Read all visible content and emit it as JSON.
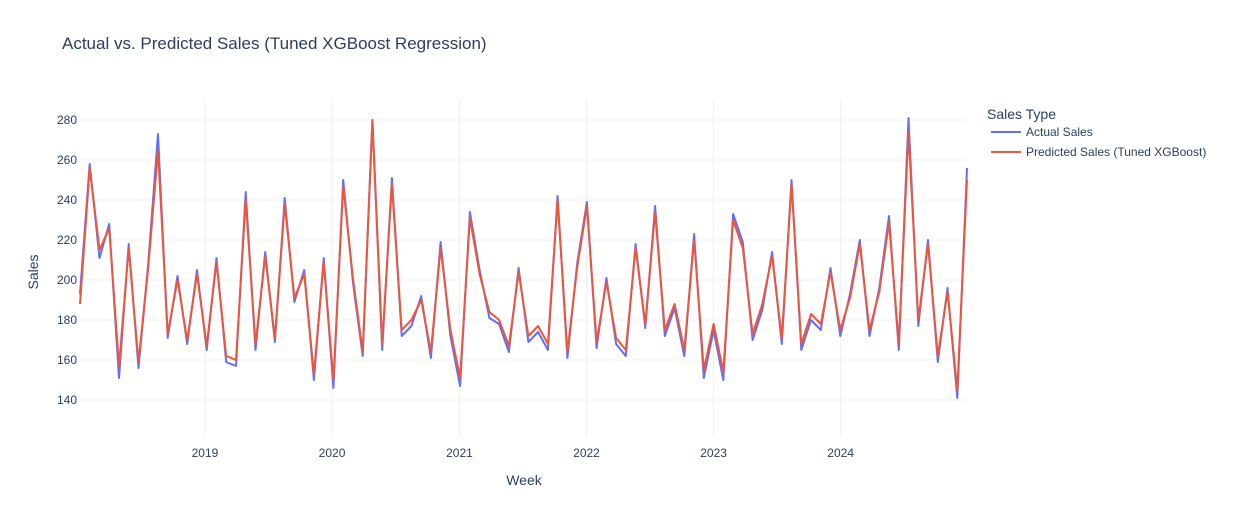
{
  "chart_data": {
    "type": "line",
    "title": "Actual vs. Predicted Sales (Tuned XGBoost Regression)",
    "xlabel": "Week",
    "ylabel": "Sales",
    "ylim": [
      122,
      290
    ],
    "xlim": [
      "2018-01-07",
      "2024-12-29"
    ],
    "y_ticks": [
      140,
      160,
      180,
      200,
      220,
      240,
      260,
      280
    ],
    "x_ticks": [
      "2019",
      "2020",
      "2021",
      "2022",
      "2023",
      "2024"
    ],
    "grid": true,
    "legend_title": "Sales Type",
    "legend_position": "top-right outside",
    "x": [
      "2018-01-07",
      "2018-02-04",
      "2018-03-04",
      "2018-04-01",
      "2018-04-29",
      "2018-05-27",
      "2018-06-24",
      "2018-07-22",
      "2018-08-19",
      "2018-09-16",
      "2018-10-14",
      "2018-11-11",
      "2018-12-09",
      "2019-01-06",
      "2019-02-03",
      "2019-03-03",
      "2019-03-31",
      "2019-04-28",
      "2019-05-26",
      "2019-06-23",
      "2019-07-21",
      "2019-08-18",
      "2019-09-15",
      "2019-10-13",
      "2019-11-10",
      "2019-12-08",
      "2020-01-05",
      "2020-02-02",
      "2020-03-01",
      "2020-03-29",
      "2020-04-26",
      "2020-05-24",
      "2020-06-21",
      "2020-07-19",
      "2020-08-16",
      "2020-09-13",
      "2020-10-11",
      "2020-11-08",
      "2020-12-06",
      "2021-01-03",
      "2021-01-31",
      "2021-02-28",
      "2021-03-28",
      "2021-04-25",
      "2021-05-23",
      "2021-06-20",
      "2021-07-18",
      "2021-08-15",
      "2021-09-12",
      "2021-10-10",
      "2021-11-07",
      "2021-12-05",
      "2022-01-02",
      "2022-01-30",
      "2022-02-27",
      "2022-03-27",
      "2022-04-24",
      "2022-05-22",
      "2022-06-19",
      "2022-07-17",
      "2022-08-14",
      "2022-09-11",
      "2022-10-09",
      "2022-11-06",
      "2022-12-04",
      "2023-01-01",
      "2023-01-29",
      "2023-02-26",
      "2023-03-26",
      "2023-04-23",
      "2023-05-21",
      "2023-06-18",
      "2023-07-16",
      "2023-08-13",
      "2023-09-10",
      "2023-10-08",
      "2023-11-05",
      "2023-12-03",
      "2023-12-31",
      "2024-01-28",
      "2024-02-25",
      "2024-03-24",
      "2024-04-21",
      "2024-05-19",
      "2024-06-16",
      "2024-07-14",
      "2024-08-11",
      "2024-09-08",
      "2024-10-06",
      "2024-11-03",
      "2024-12-01",
      "2024-12-29"
    ],
    "series": [
      {
        "name": "Actual Sales",
        "color": "#636efa",
        "values": [
          193,
          258,
          211,
          228,
          151,
          218,
          156,
          208,
          273,
          171,
          202,
          168,
          205,
          165,
          211,
          159,
          157,
          244,
          165,
          214,
          169,
          241,
          189,
          205,
          150,
          211,
          146,
          250,
          199,
          162,
          280,
          165,
          251,
          172,
          177,
          192,
          161,
          219,
          172,
          147,
          234,
          205,
          181,
          178,
          164,
          206,
          169,
          174,
          165,
          242,
          161,
          208,
          239,
          166,
          201,
          168,
          162,
          218,
          176,
          237,
          172,
          186,
          162,
          223,
          151,
          175,
          150,
          233,
          219,
          170,
          185,
          214,
          168,
          250,
          165,
          180,
          175,
          206,
          172,
          193,
          220,
          172,
          196,
          232,
          165,
          281,
          177,
          220,
          159,
          196,
          141,
          256
        ]
      },
      {
        "name": "Predicted Sales (Tuned XGBoost)",
        "color": "#ef553b",
        "values": [
          188,
          256,
          215,
          226,
          157,
          216,
          159,
          206,
          265,
          173,
          200,
          170,
          203,
          167,
          209,
          162,
          160,
          240,
          168,
          212,
          171,
          238,
          191,
          203,
          153,
          209,
          150,
          247,
          201,
          164,
          280,
          168,
          248,
          175,
          180,
          190,
          164,
          216,
          175,
          151,
          231,
          203,
          184,
          180,
          167,
          204,
          172,
          177,
          168,
          240,
          164,
          206,
          237,
          169,
          199,
          171,
          165,
          216,
          178,
          234,
          175,
          188,
          165,
          220,
          155,
          178,
          154,
          230,
          216,
          173,
          188,
          212,
          171,
          248,
          168,
          183,
          178,
          204,
          175,
          191,
          218,
          175,
          194,
          229,
          168,
          274,
          180,
          218,
          162,
          194,
          145,
          250
        ]
      }
    ]
  }
}
